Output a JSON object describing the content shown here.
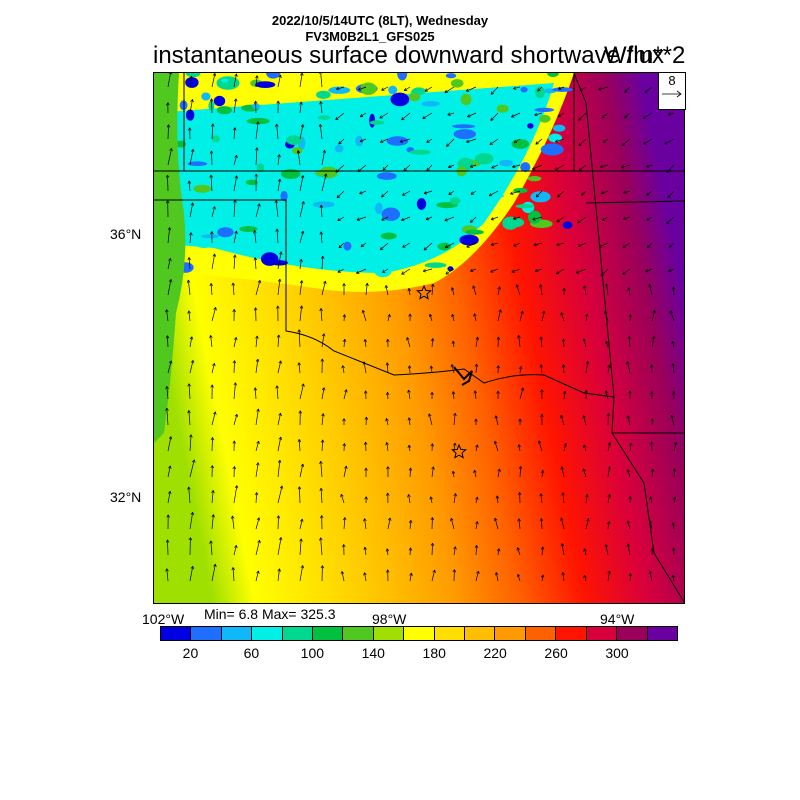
{
  "header": {
    "valid_time": "2022/10/5/14UTC (8LT), Wednesday",
    "model": "FV3M0B2L1_GFS025",
    "title": "instantaneous surface downward shortwave flux",
    "units": "W/m**2"
  },
  "stats": {
    "min_max": "Min= 6.8 Max= 325.3"
  },
  "map": {
    "lat_labels": [
      "36°N",
      "32°N"
    ],
    "lon_labels": [
      "102°W",
      "98°W",
      "94°W"
    ],
    "ref_vector_value": "8",
    "markers": [
      "star",
      "star"
    ]
  },
  "colorbar": {
    "colors": [
      "#0000e0",
      "#1e6fff",
      "#10b8f8",
      "#00f0e8",
      "#00d890",
      "#00c040",
      "#50c820",
      "#a0e000",
      "#ffff00",
      "#ffde00",
      "#ffbe00",
      "#ff9a00",
      "#ff6000",
      "#ff1400",
      "#d8003c",
      "#9a005a",
      "#6a00a0"
    ],
    "labels": [
      "20",
      "60",
      "100",
      "140",
      "180",
      "220",
      "260",
      "300"
    ]
  }
}
